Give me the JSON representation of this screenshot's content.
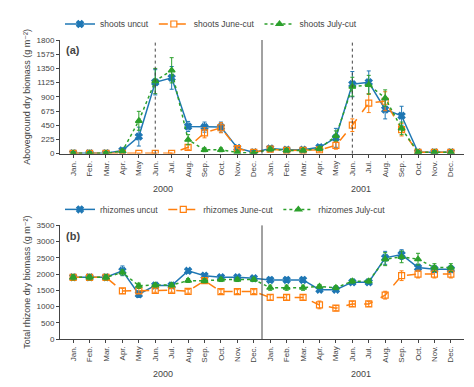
{
  "chart_data": [
    {
      "type": "line",
      "title": "(a)",
      "y_label": "Aboveground dry biomass (g m⁻²)",
      "categories": [
        "Jan.",
        "Feb.",
        "Mar.",
        "Apr.",
        "May",
        "Jun.",
        "Jul.",
        "Aug.",
        "Sep.",
        "Oct.",
        "Nov.",
        "Dec.",
        "Jan.",
        "Feb.",
        "Mar.",
        "Apr.",
        "May",
        "Jun.",
        "Jul.",
        "Aug.",
        "Sep.",
        "Oct.",
        "Nov.",
        "Dec."
      ],
      "series": [
        {
          "name": "shoots uncut",
          "marker": "x",
          "line_style": "solid",
          "values": [
            5,
            5,
            5,
            50,
            270,
            1130,
            1200,
            430,
            420,
            420,
            90,
            20,
            80,
            60,
            60,
            100,
            250,
            1100,
            1130,
            700,
            600,
            20,
            20,
            20
          ],
          "errors": [
            3,
            3,
            3,
            30,
            150,
            200,
            180,
            80,
            80,
            80,
            30,
            10,
            30,
            20,
            20,
            40,
            150,
            200,
            180,
            150,
            150,
            15,
            10,
            10
          ]
        },
        {
          "name": "shoots June-cut",
          "marker": "square-open",
          "line_style": "dash",
          "values": [
            5,
            5,
            5,
            5,
            5,
            5,
            5,
            100,
            330,
            410,
            80,
            20,
            70,
            50,
            50,
            60,
            130,
            450,
            800,
            830,
            380,
            20,
            20,
            20
          ],
          "errors": [
            3,
            3,
            3,
            3,
            3,
            3,
            3,
            40,
            80,
            80,
            30,
            10,
            30,
            20,
            20,
            30,
            60,
            100,
            150,
            150,
            100,
            15,
            10,
            10
          ]
        },
        {
          "name": "shoots July-cut",
          "marker": "triangle-up",
          "line_style": "dot",
          "values": [
            5,
            5,
            5,
            40,
            520,
            1150,
            1320,
            220,
            60,
            60,
            20,
            5,
            70,
            50,
            50,
            80,
            280,
            1060,
            1090,
            880,
            400,
            20,
            20,
            20
          ],
          "errors": [
            3,
            3,
            3,
            20,
            150,
            200,
            200,
            80,
            30,
            30,
            10,
            5,
            30,
            20,
            20,
            30,
            80,
            150,
            150,
            130,
            100,
            15,
            10,
            10
          ]
        }
      ],
      "vlines": [
        {
          "x": 5,
          "line_style": "dot"
        },
        {
          "x": 17,
          "line_style": "dot"
        },
        {
          "x": 11.5,
          "line_style": "solid"
        }
      ],
      "annotations": [
        {
          "text": "2000"
        },
        {
          "text": "2001"
        }
      ],
      "ylim": [
        0,
        1800
      ],
      "yticks": [
        0,
        225,
        450,
        675,
        900,
        1125,
        1350,
        1575,
        1800
      ],
      "grid": false,
      "legend": "top"
    },
    {
      "type": "line",
      "title": "(b)",
      "y_label": "Total rhizone dry biomass (g m⁻²)",
      "categories": [
        "Jan.",
        "Feb.",
        "Mar.",
        "Apr.",
        "May",
        "Jun.",
        "Jul.",
        "Aug.",
        "Sep.",
        "Oct.",
        "Nov.",
        "Dec.",
        "Jan.",
        "Feb.",
        "Mar.",
        "Apr.",
        "May",
        "Jun.",
        "Jul.",
        "Aug.",
        "Sep.",
        "Oct.",
        "Nov.",
        "Dec."
      ],
      "series": [
        {
          "name": "rhizomes uncut",
          "marker": "x",
          "line_style": "solid",
          "values": [
            1900,
            1900,
            1900,
            2100,
            1380,
            1650,
            1650,
            2100,
            1950,
            1900,
            1900,
            1870,
            1820,
            1820,
            1820,
            1520,
            1520,
            1750,
            1750,
            2500,
            2600,
            2200,
            2150,
            2150
          ],
          "errors": [
            80,
            80,
            80,
            150,
            100,
            60,
            60,
            60,
            60,
            60,
            60,
            60,
            80,
            80,
            80,
            60,
            60,
            60,
            60,
            200,
            150,
            100,
            100,
            100
          ]
        },
        {
          "name": "rhizomes June-cut",
          "marker": "square-open",
          "line_style": "dash",
          "values": [
            1900,
            1900,
            1900,
            1480,
            1480,
            1500,
            1500,
            1470,
            1800,
            1460,
            1460,
            1460,
            1280,
            1280,
            1280,
            1050,
            950,
            1080,
            1080,
            1350,
            1950,
            2000,
            2000,
            2000
          ],
          "errors": [
            80,
            80,
            80,
            80,
            80,
            60,
            60,
            60,
            60,
            60,
            60,
            60,
            80,
            80,
            80,
            120,
            80,
            80,
            80,
            120,
            150,
            120,
            120,
            120
          ]
        },
        {
          "name": "rhizomes July-cut",
          "marker": "triangle-up",
          "line_style": "dot",
          "values": [
            1900,
            1900,
            1900,
            2050,
            1640,
            1660,
            1660,
            1800,
            1790,
            1830,
            1830,
            1830,
            1580,
            1580,
            1580,
            1620,
            1580,
            1780,
            1780,
            2460,
            2530,
            2460,
            2200,
            2200
          ],
          "errors": [
            80,
            80,
            80,
            80,
            80,
            60,
            60,
            60,
            60,
            60,
            60,
            60,
            80,
            80,
            80,
            60,
            60,
            60,
            60,
            200,
            180,
            180,
            120,
            120
          ]
        }
      ],
      "vlines": [
        {
          "x": 11.5,
          "line_style": "solid"
        }
      ],
      "annotations": [
        {
          "text": "2000"
        },
        {
          "text": "2001"
        }
      ],
      "ylim": [
        0,
        3500
      ],
      "yticks": [
        0,
        500,
        1000,
        1500,
        2000,
        2500,
        3000,
        3500
      ],
      "grid": false,
      "legend": "top"
    }
  ]
}
